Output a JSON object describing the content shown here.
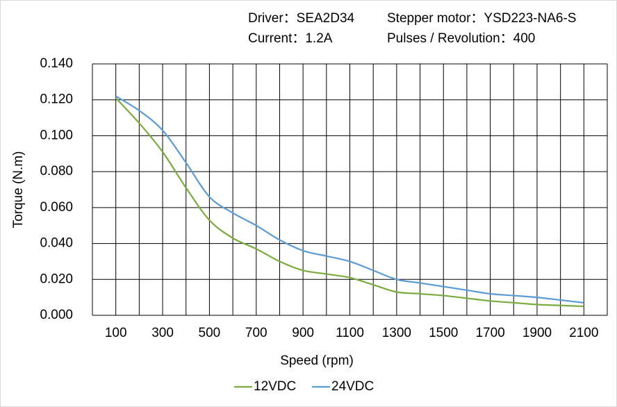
{
  "chart_data": {
    "type": "line",
    "annotations": [
      "Driver：SEA2D34",
      "Stepper motor：YSD223-NA6-S",
      "Current：1.2A",
      "Pulses / Revolution：400"
    ],
    "x_label": "Speed  (rpm)",
    "y_label": "Torque (N.m)",
    "x": [
      100,
      200,
      300,
      400,
      500,
      600,
      700,
      800,
      900,
      1000,
      1100,
      1200,
      1300,
      1400,
      1500,
      1600,
      1700,
      1800,
      1900,
      2000,
      2100
    ],
    "series": [
      {
        "name": "12VDC",
        "color": "#7aab3e",
        "values": [
          0.121,
          0.107,
          0.091,
          0.071,
          0.053,
          0.043,
          0.037,
          0.03,
          0.025,
          0.023,
          0.021,
          0.017,
          0.013,
          0.012,
          0.011,
          0.0095,
          0.008,
          0.007,
          0.006,
          0.0055,
          0.005
        ]
      },
      {
        "name": "24VDC",
        "color": "#5b9bd5",
        "values": [
          0.122,
          0.114,
          0.103,
          0.085,
          0.066,
          0.057,
          0.05,
          0.042,
          0.036,
          0.033,
          0.03,
          0.025,
          0.02,
          0.018,
          0.016,
          0.014,
          0.012,
          0.011,
          0.01,
          0.0085,
          0.007
        ]
      }
    ],
    "xlim": [
      0,
      2200
    ],
    "xticks": [
      100,
      300,
      500,
      700,
      900,
      1100,
      1300,
      1500,
      1700,
      1900,
      2100
    ],
    "minor_xgrid": [
      0,
      200,
      400,
      600,
      800,
      1000,
      1200,
      1400,
      1600,
      1800,
      2000,
      2200
    ],
    "ylim": [
      0,
      0.14
    ],
    "yticks": [
      {
        "value": 0,
        "label": "0.000"
      },
      {
        "value": 0.02,
        "label": "0.020"
      },
      {
        "value": 0.04,
        "label": "0.040"
      },
      {
        "value": 0.06,
        "label": "0.060"
      },
      {
        "value": 0.08,
        "label": "0.080"
      },
      {
        "value": 0.1,
        "label": "0.100"
      },
      {
        "value": 0.12,
        "label": "0.120"
      },
      {
        "value": 0.14,
        "label": "0.140"
      }
    ],
    "grid": true,
    "legend": "bottom"
  }
}
